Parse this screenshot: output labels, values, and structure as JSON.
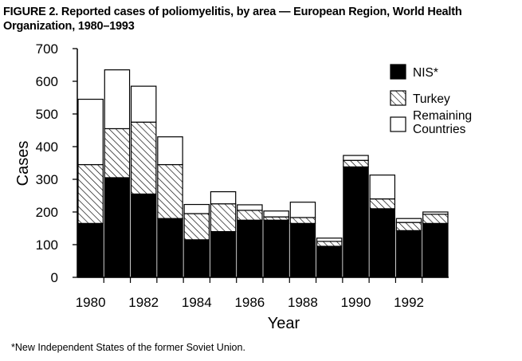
{
  "title": "FIGURE 2. Reported cases of poliomyelitis, by area — European Region, World Health Organization, 1980–1993",
  "footnote": "*New Independent States of the former Soviet Union.",
  "chart_data": {
    "type": "bar",
    "stacked": true,
    "title": "FIGURE 2. Reported cases of poliomyelitis, by area — European Region, World Health Organization, 1980–1993",
    "xlabel": "Year",
    "ylabel": "Cases",
    "ylim": [
      0,
      700
    ],
    "yticks": [
      0,
      100,
      200,
      300,
      400,
      500,
      600,
      700
    ],
    "categories": [
      "1980",
      "1981",
      "1982",
      "1983",
      "1984",
      "1985",
      "1986",
      "1987",
      "1988",
      "1989",
      "1990",
      "1991",
      "1992",
      "1993"
    ],
    "xtick_labels": [
      "1980",
      "1982",
      "1984",
      "1986",
      "1988",
      "1990",
      "1992"
    ],
    "grid": false,
    "legend_position": "top-right",
    "series": [
      {
        "name": "NIS*",
        "fill": "solid",
        "color": "#000000",
        "values": [
          165,
          305,
          255,
          180,
          115,
          140,
          175,
          175,
          165,
          95,
          338,
          210,
          143,
          165
        ]
      },
      {
        "name": "Turkey",
        "fill": "hatched",
        "color": "#000000",
        "values": [
          180,
          150,
          220,
          165,
          80,
          85,
          30,
          10,
          18,
          15,
          20,
          30,
          25,
          28
        ]
      },
      {
        "name": "Remaining Countries",
        "fill": "white",
        "color": "#ffffff",
        "values": [
          200,
          180,
          110,
          85,
          28,
          37,
          17,
          18,
          47,
          10,
          15,
          73,
          12,
          7
        ]
      }
    ]
  }
}
